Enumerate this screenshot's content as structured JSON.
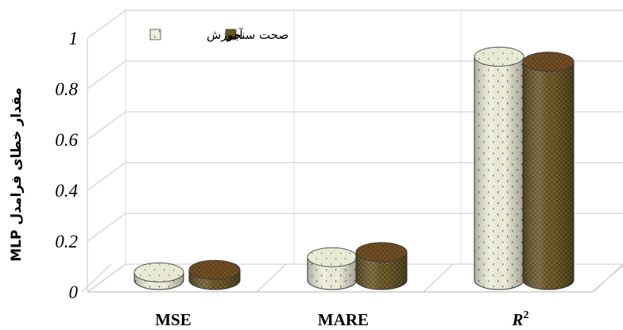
{
  "chart_data": {
    "type": "bar",
    "style": "3d-cylinder",
    "categories": [
      "MSE",
      "MARE",
      "R2"
    ],
    "category_labels": [
      {
        "base": "MSE",
        "sup": ""
      },
      {
        "base": "MARE",
        "sup": ""
      },
      {
        "base": "R",
        "sup": "2"
      }
    ],
    "series": [
      {
        "name": "آموزش",
        "values": [
          0.03,
          0.09,
          0.88
        ],
        "color": "#efedd7",
        "pattern": "dots"
      },
      {
        "name": "صحت سنجی",
        "values": [
          0.04,
          0.11,
          0.86
        ],
        "color": "#7a3c1e",
        "pattern": "checker-green"
      }
    ],
    "ylabel": "مقدار خطای فرامدل MLP",
    "ylim": [
      0,
      1
    ],
    "yticks": [
      0,
      0.2,
      0.4,
      0.6,
      0.8,
      1
    ],
    "ytick_labels": [
      "0",
      "0.2",
      "0.4",
      "0.6",
      "0.8",
      "1"
    ],
    "grid": true,
    "legend_position": "top-left"
  }
}
